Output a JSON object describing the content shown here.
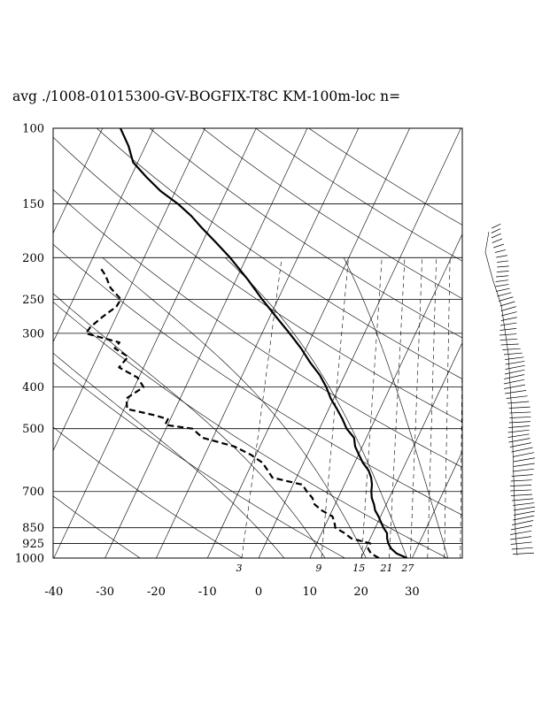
{
  "chart_data": {
    "type": "line",
    "title": "avg ./1008-01015300-GV-BOGFIX-T8C KM-100m-loc n=",
    "xlabel": "",
    "ylabel": "",
    "x_ticks": [
      "-40",
      "-30",
      "-20",
      "-10",
      "0",
      "10",
      "20",
      "30"
    ],
    "xlim": [
      -40,
      40
    ],
    "pressure_ticks": [
      "100",
      "150",
      "200",
      "250",
      "300",
      "400",
      "500",
      "700",
      "850",
      "925",
      "1000"
    ],
    "ylim_hPa": [
      1000,
      100
    ],
    "y_scale": "log",
    "mixing_ratio_labels": [
      "3",
      "9",
      "15",
      "21",
      "27"
    ],
    "grid": true,
    "series": [
      {
        "name": "",
        "style": "solid",
        "points": [
          [
            1000,
            29
          ],
          [
            975,
            26.5
          ],
          [
            950,
            25
          ],
          [
            925,
            24
          ],
          [
            900,
            23.3
          ],
          [
            875,
            22.8
          ],
          [
            850,
            21.6
          ],
          [
            825,
            20.6
          ],
          [
            800,
            19.6
          ],
          [
            775,
            18.4
          ],
          [
            750,
            17.6
          ],
          [
            725,
            16.6
          ],
          [
            700,
            15.9
          ],
          [
            675,
            15.4
          ],
          [
            650,
            14.6
          ],
          [
            625,
            13.4
          ],
          [
            600,
            11.6
          ],
          [
            575,
            10.1
          ],
          [
            550,
            8.6
          ],
          [
            525,
            7.6
          ],
          [
            500,
            5.3
          ],
          [
            475,
            3.6
          ],
          [
            450,
            1.6
          ],
          [
            425,
            -0.6
          ],
          [
            400,
            -2.5
          ],
          [
            375,
            -4.9
          ],
          [
            350,
            -8.0
          ],
          [
            325,
            -11.0
          ],
          [
            300,
            -14.6
          ],
          [
            275,
            -18.7
          ],
          [
            250,
            -23.1
          ],
          [
            225,
            -27.7
          ],
          [
            200,
            -33.2
          ],
          [
            185,
            -37.2
          ],
          [
            170,
            -41.6
          ],
          [
            160,
            -44.6
          ],
          [
            150,
            -48.3
          ],
          [
            140,
            -52.9
          ],
          [
            130,
            -56.9
          ],
          [
            120,
            -60.9
          ],
          [
            110,
            -63.3
          ],
          [
            100,
            -66.5
          ]
        ]
      },
      {
        "name": "",
        "style": "dashed",
        "points": [
          [
            1000,
            23.5
          ],
          [
            975,
            21.5
          ],
          [
            950,
            20.5
          ],
          [
            925,
            20.5
          ],
          [
            900,
            16.3
          ],
          [
            875,
            14.5
          ],
          [
            850,
            12.2
          ],
          [
            825,
            11.5
          ],
          [
            800,
            10.6
          ],
          [
            775,
            8.0
          ],
          [
            750,
            6.0
          ],
          [
            725,
            5.0
          ],
          [
            700,
            3.3
          ],
          [
            675,
            1.8
          ],
          [
            650,
            -4.7
          ],
          [
            625,
            -6.3
          ],
          [
            600,
            -8.0
          ],
          [
            575,
            -11.0
          ],
          [
            550,
            -15.0
          ],
          [
            525,
            -22.0
          ],
          [
            500,
            -24.8
          ],
          [
            490,
            -30.5
          ],
          [
            475,
            -30.5
          ],
          [
            465,
            -33.5
          ],
          [
            450,
            -39.4
          ],
          [
            425,
            -40.5
          ],
          [
            400,
            -38.2
          ],
          [
            380,
            -40.3
          ],
          [
            360,
            -44.8
          ],
          [
            340,
            -44.0
          ],
          [
            325,
            -47.4
          ],
          [
            315,
            -47.0
          ],
          [
            300,
            -54.4
          ],
          [
            290,
            -54.1
          ],
          [
            275,
            -52.7
          ],
          [
            260,
            -50.9
          ],
          [
            250,
            -50.7
          ],
          [
            235,
            -53.8
          ],
          [
            220,
            -55.9
          ],
          [
            210,
            -57.8
          ]
        ]
      }
    ]
  }
}
